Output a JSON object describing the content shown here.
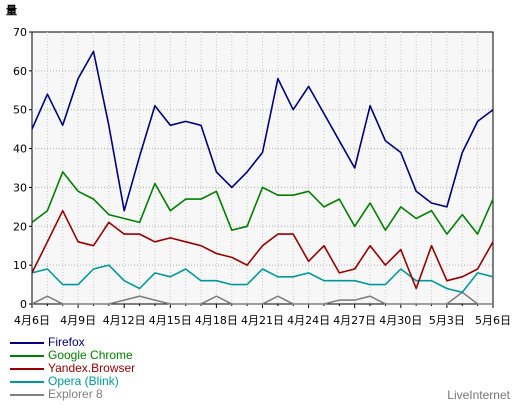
{
  "chart_data": {
    "type": "line",
    "title": "",
    "ylabel": "量",
    "xlabel": "",
    "ylim": [
      0,
      70
    ],
    "yticks": [
      0,
      10,
      20,
      30,
      40,
      50,
      60,
      70
    ],
    "grid": true,
    "legend_position": "bottom-left",
    "x": [
      "4月6日",
      "4月7日",
      "4月8日",
      "4月9日",
      "4月10日",
      "4月11日",
      "4月12日",
      "4月13日",
      "4月14日",
      "4月15日",
      "4月16日",
      "4月17日",
      "4月18日",
      "4月19日",
      "4月20日",
      "4月21日",
      "4月22日",
      "4月23日",
      "4月24日",
      "4月25日",
      "4月26日",
      "4月27日",
      "4月28日",
      "4月29日",
      "4月30日",
      "5月1日",
      "5月2日",
      "5月3日",
      "5月4日",
      "5月5日",
      "5月6日"
    ],
    "xtick_labels": [
      "4月6日",
      "4月9日",
      "4月12日",
      "4月15日",
      "4月18日",
      "4月21日",
      "4月24日",
      "4月27日",
      "4月30日",
      "5月3日",
      "5月6日"
    ],
    "series": [
      {
        "name": "Firefox",
        "color": "#000080",
        "values": [
          45,
          54,
          46,
          58,
          65,
          46,
          24,
          38,
          51,
          46,
          47,
          46,
          34,
          30,
          34,
          39,
          58,
          50,
          56,
          49,
          42,
          35,
          51,
          42,
          39,
          29,
          26,
          25,
          39,
          47,
          50
        ]
      },
      {
        "name": "Google Chrome",
        "color": "#008000",
        "values": [
          21,
          24,
          34,
          29,
          27,
          23,
          22,
          21,
          31,
          24,
          27,
          27,
          29,
          19,
          20,
          30,
          28,
          28,
          29,
          25,
          27,
          20,
          26,
          19,
          25,
          22,
          24,
          18,
          23,
          18,
          27
        ]
      },
      {
        "name": "Yandex.Browser",
        "color": "#990000",
        "values": [
          8,
          16,
          24,
          16,
          15,
          21,
          18,
          18,
          16,
          17,
          16,
          15,
          13,
          12,
          10,
          15,
          18,
          18,
          11,
          15,
          8,
          9,
          15,
          10,
          14,
          4,
          15,
          6,
          7,
          9,
          16
        ]
      },
      {
        "name": "Opera (Blink)",
        "color": "#009999",
        "values": [
          8,
          9,
          5,
          5,
          9,
          10,
          6,
          4,
          8,
          7,
          9,
          6,
          6,
          5,
          5,
          9,
          7,
          7,
          8,
          6,
          6,
          6,
          5,
          5,
          9,
          6,
          6,
          4,
          3,
          8,
          7
        ]
      },
      {
        "name": "Explorer 8",
        "color": "#808080",
        "values": [
          0,
          2,
          0,
          0,
          0,
          0,
          1,
          2,
          1,
          0,
          0,
          0,
          2,
          0,
          0,
          0,
          2,
          0,
          0,
          0,
          1,
          1,
          2,
          0,
          0,
          0,
          0,
          0,
          3,
          0,
          0
        ]
      }
    ],
    "branding": "LiveInternet"
  }
}
